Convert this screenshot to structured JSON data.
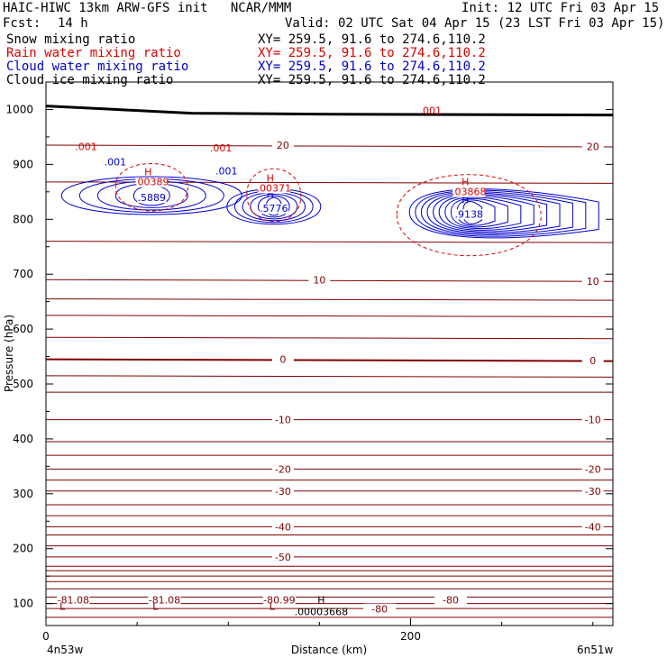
{
  "header": {
    "title_line": "HAIC-HIWC 13km ARW-GFS init   NCAR/MMM",
    "init": "Init: 12 UTC Fri 03 Apr 15",
    "fcst_label": "Fcst:",
    "fcst_value": "14 h",
    "valid": "Valid: 02 UTC Sat 04 Apr 15 (23 LST Fri 03 Apr 15)"
  },
  "legend": [
    {
      "name": "Snow mixing ratio",
      "xy": "XY= 259.5, 91.6 to 274.6,110.2",
      "color": "#000000"
    },
    {
      "name": "Rain water mixing ratio",
      "xy": "XY= 259.5, 91.6 to 274.6,110.2",
      "color": "#dd0000"
    },
    {
      "name": "Cloud water mixing ratio",
      "xy": "XY= 259.5, 91.6 to 274.6,110.2",
      "color": "#0000cc"
    },
    {
      "name": "Cloud ice mixing ratio",
      "xy": "XY= 259.5, 91.6 to 274.6,110.2",
      "color": "#000000"
    }
  ],
  "chart_data": {
    "type": "contour",
    "xlabel": "Distance (km)",
    "ylabel": "Pressure (hPa)",
    "xlim": [
      0,
      311
    ],
    "ylim": [
      1050,
      60
    ],
    "x_ticks": [
      0,
      200
    ],
    "x_tick_labels": [
      "0",
      "200"
    ],
    "y_ticks": [
      100,
      200,
      300,
      400,
      500,
      600,
      700,
      800,
      900,
      1000
    ],
    "y_tick_labels": [
      "100",
      "200",
      "300",
      "400",
      "500",
      "600",
      "700",
      "800",
      "900",
      "1000"
    ],
    "endpoints": {
      "left": "4n53w",
      "right": "6n51w"
    },
    "temperature_contours_color": "#800000",
    "isotherms": [
      {
        "p": 100,
        "label": "-80"
      },
      {
        "p": 185,
        "label": "-50"
      },
      {
        "p": 240,
        "label": "-40"
      },
      {
        "p": 305,
        "label": "-30"
      },
      {
        "p": 345,
        "label": "-20"
      },
      {
        "p": 435,
        "label": "-10"
      },
      {
        "p": 545,
        "label": "0"
      },
      {
        "p": 690,
        "label": "10"
      },
      {
        "p": 935,
        "label": "20"
      }
    ],
    "unlabeled_isotherm_pressures": [
      75,
      91,
      112,
      127,
      140,
      150,
      160,
      168,
      205,
      225,
      260,
      280,
      325,
      370,
      395,
      485,
      515,
      585,
      625,
      655,
      760,
      868
    ],
    "temperature_annotations": [
      {
        "text": "-81.08",
        "x": 15,
        "p": 107
      },
      {
        "text": "-81.08",
        "x": 65,
        "p": 107
      },
      {
        "text": "-80.99",
        "x": 128,
        "p": 107
      },
      {
        "text": "-80",
        "x": 183,
        "p": 90
      },
      {
        "text": "-80",
        "x": 222,
        "p": 107
      }
    ],
    "extrema_markers": [
      {
        "kind": "L",
        "x": 9,
        "p": 95,
        "color": "#800000"
      },
      {
        "kind": "L",
        "x": 60,
        "p": 95,
        "color": "#800000"
      },
      {
        "kind": "L",
        "x": 124,
        "p": 95,
        "color": "#800000"
      },
      {
        "kind": "H",
        "x": 151,
        "p": 107,
        "color": "#000000",
        "value": ".00003668"
      }
    ],
    "cloud_water": {
      "color": "#0000cc",
      "maxima": [
        {
          "x": 58,
          "p": 853,
          "value": ".5889"
        },
        {
          "x": 125,
          "p": 833,
          "value": ".5776"
        },
        {
          "x": 232,
          "p": 823,
          "value": ".9138"
        }
      ],
      "contour_labels": [
        {
          "text": ".001",
          "x": 38,
          "p": 905
        },
        {
          "text": ".001",
          "x": 99,
          "p": 888
        }
      ]
    },
    "rain_water": {
      "color": "#dd0000",
      "maxima": [
        {
          "x": 58,
          "p": 883,
          "value": ".00389"
        },
        {
          "x": 125,
          "p": 872,
          "value": ".00371"
        },
        {
          "x": 232,
          "p": 865,
          "value": ".03868"
        }
      ],
      "contour_labels": [
        {
          "text": ".001",
          "x": 22,
          "p": 933
        },
        {
          "text": ".001",
          "x": 96,
          "p": 930
        },
        {
          "text": ".001",
          "x": 211,
          "p": 998
        }
      ]
    },
    "ground_pressure": 1003
  }
}
